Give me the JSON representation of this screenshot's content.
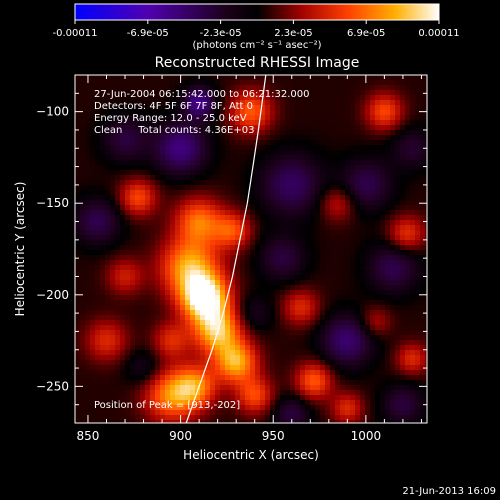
{
  "colorbar": {
    "ticks": [
      "-0.00011",
      "-6.9e-05",
      "-2.3e-05",
      "2.3e-05",
      "6.9e-05",
      "0.00011"
    ],
    "units_label": "(photons cm⁻² s⁻¹ asec⁻²)"
  },
  "annotations": {
    "time_range": "27-Jun-2004 06:15:42.000 to 06:21:32.000",
    "detectors": "Detectors: 4F 5F 6F 7F 8F, Att 0",
    "energy": "Energy Range: 12.0 - 25.0 keV",
    "clean": "Clean     Total counts: 4.36E+03",
    "peak": "Position of Peak = [913,-202]"
  },
  "footer_date": "21-Jun-2013 16:09",
  "chart_data": {
    "type": "heatmap",
    "title": "Reconstructed RHESSI Image",
    "xlabel": "Heliocentric X (arcsec)",
    "ylabel": "Heliocentric Y (arcsec)",
    "xlim": [
      843,
      1033
    ],
    "ylim": [
      -270,
      -80
    ],
    "xticks": [
      850,
      900,
      950,
      1000
    ],
    "yticks": [
      -100,
      -150,
      -200,
      -250
    ],
    "peak": [
      913,
      -202
    ],
    "limb_curve": [
      [
        903,
        -270
      ],
      [
        910,
        -250
      ],
      [
        917,
        -230
      ],
      [
        923,
        -210
      ],
      [
        928,
        -190
      ],
      [
        932,
        -170
      ],
      [
        936,
        -150
      ],
      [
        939,
        -130
      ],
      [
        942,
        -110
      ],
      [
        944,
        -95
      ],
      [
        946,
        -80
      ]
    ],
    "colorscale": {
      "min": -0.00011,
      "max": 0.00011,
      "colors": [
        "#0000ff",
        "#5000b0",
        "#200020",
        "#000000",
        "#a00000",
        "#ff4000",
        "#ffb000",
        "#ffffff"
      ]
    },
    "sources": [
      {
        "x": 913,
        "y": -202,
        "amp": 1.0,
        "r": 9
      },
      {
        "x": 905,
        "y": -185,
        "amp": 0.7,
        "r": 11
      },
      {
        "x": 920,
        "y": -220,
        "amp": 0.75,
        "r": 9
      },
      {
        "x": 930,
        "y": -237,
        "amp": 0.7,
        "r": 8
      },
      {
        "x": 910,
        "y": -160,
        "amp": 0.55,
        "r": 9
      },
      {
        "x": 928,
        "y": -165,
        "amp": 0.45,
        "r": 7
      },
      {
        "x": 895,
        "y": -255,
        "amp": 0.6,
        "r": 10
      },
      {
        "x": 908,
        "y": -250,
        "amp": 0.55,
        "r": 8
      },
      {
        "x": 940,
        "y": -255,
        "amp": 0.45,
        "r": 7
      },
      {
        "x": 972,
        "y": -247,
        "amp": 0.5,
        "r": 7
      },
      {
        "x": 965,
        "y": -207,
        "amp": 0.35,
        "r": 7
      },
      {
        "x": 877,
        "y": -147,
        "amp": 0.45,
        "r": 7
      },
      {
        "x": 860,
        "y": -225,
        "amp": 0.35,
        "r": 8
      },
      {
        "x": 870,
        "y": -190,
        "amp": 0.3,
        "r": 7
      },
      {
        "x": 938,
        "y": -100,
        "amp": 0.5,
        "r": 8
      },
      {
        "x": 1010,
        "y": -100,
        "amp": 0.45,
        "r": 7
      },
      {
        "x": 1022,
        "y": -167,
        "amp": 0.4,
        "r": 7
      },
      {
        "x": 985,
        "y": -150,
        "amp": 0.3,
        "r": 7
      },
      {
        "x": 1025,
        "y": -235,
        "amp": 0.35,
        "r": 6
      },
      {
        "x": 990,
        "y": -262,
        "amp": 0.35,
        "r": 6
      },
      {
        "x": 1005,
        "y": -215,
        "amp": 0.25,
        "r": 6
      },
      {
        "x": 895,
        "y": -225,
        "amp": 0.35,
        "r": 7
      },
      {
        "x": 900,
        "y": -120,
        "amp": -0.5,
        "r": 10
      },
      {
        "x": 870,
        "y": -115,
        "amp": -0.3,
        "r": 9
      },
      {
        "x": 855,
        "y": -160,
        "amp": -0.35,
        "r": 9
      },
      {
        "x": 960,
        "y": -140,
        "amp": -0.4,
        "r": 12
      },
      {
        "x": 1000,
        "y": -140,
        "amp": -0.35,
        "r": 10
      },
      {
        "x": 990,
        "y": -225,
        "amp": -0.45,
        "r": 10
      },
      {
        "x": 1015,
        "y": -185,
        "amp": -0.35,
        "r": 10
      },
      {
        "x": 955,
        "y": -180,
        "amp": -0.3,
        "r": 9
      },
      {
        "x": 960,
        "y": -265,
        "amp": -0.3,
        "r": 7
      },
      {
        "x": 940,
        "y": -210,
        "amp": -0.2,
        "r": 7
      },
      {
        "x": 1020,
        "y": -260,
        "amp": -0.3,
        "r": 8
      },
      {
        "x": 880,
        "y": -240,
        "amp": -0.2,
        "r": 7
      },
      {
        "x": 1025,
        "y": -120,
        "amp": -0.25,
        "r": 8
      },
      {
        "x": 910,
        "y": -95,
        "amp": -0.55,
        "r": 6
      }
    ]
  }
}
